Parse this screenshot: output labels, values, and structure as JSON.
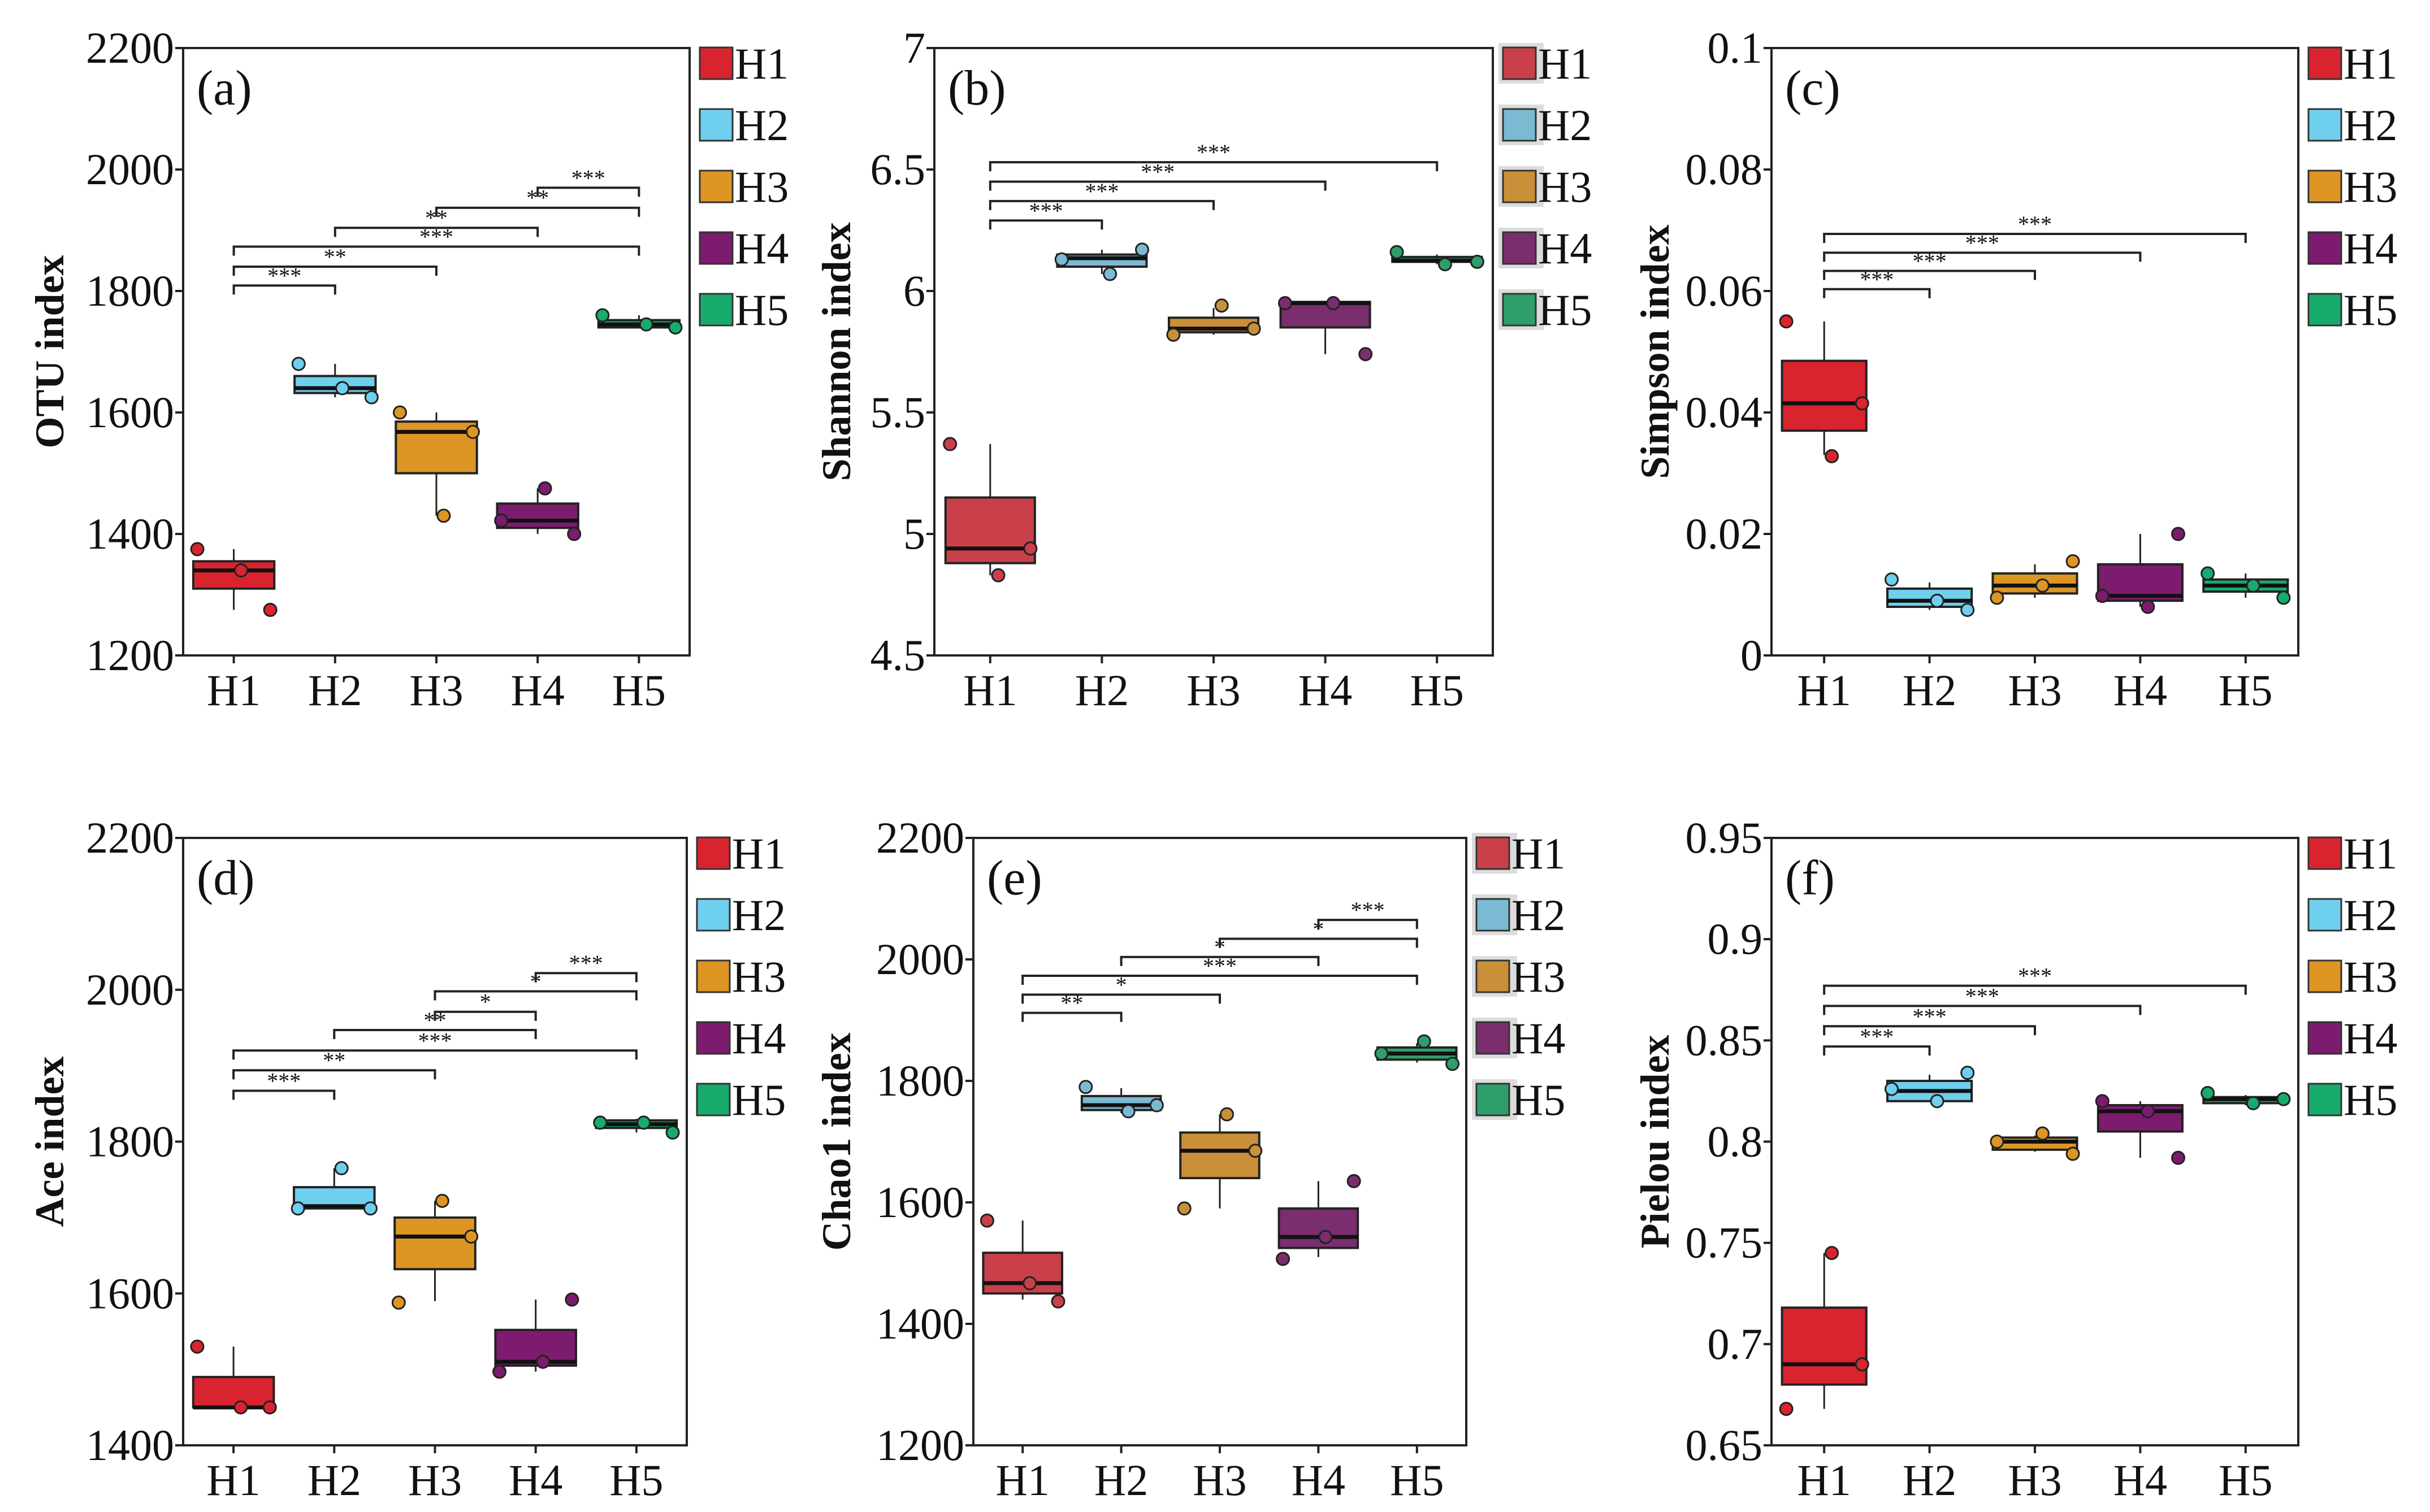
{
  "chart_data": [
    {
      "type": "box",
      "panel_label": "(a)",
      "ylabel": "OTU index",
      "ylim": [
        1200,
        2200
      ],
      "yticks": [
        "1200",
        "1400",
        "1600",
        "1800",
        "2000",
        "2200"
      ],
      "legend_style": "bright",
      "categories": [
        "H1",
        "H2",
        "H3",
        "H4",
        "H5"
      ],
      "groups": [
        {
          "whisker": [
            1275,
            1375
          ],
          "box": [
            1310,
            1355
          ],
          "median": 1340,
          "points": [
            1375,
            1340,
            1275
          ]
        },
        {
          "whisker": [
            1625,
            1680
          ],
          "box": [
            1632,
            1660
          ],
          "median": 1640,
          "points": [
            1680,
            1640,
            1625
          ]
        },
        {
          "whisker": [
            1430,
            1600
          ],
          "box": [
            1500,
            1585
          ],
          "median": 1568,
          "points": [
            1600,
            1430,
            1568
          ]
        },
        {
          "whisker": [
            1400,
            1475
          ],
          "box": [
            1410,
            1450
          ],
          "median": 1422,
          "points": [
            1422,
            1475,
            1400
          ]
        },
        {
          "whisker": [
            1740,
            1760
          ],
          "box": [
            1740,
            1752
          ],
          "median": 1745,
          "points": [
            1760,
            1745,
            1740
          ]
        }
      ],
      "brackets": [
        {
          "from": "H1",
          "to": "H2",
          "label": "***",
          "y": 1809
        },
        {
          "from": "H1",
          "to": "H3",
          "label": "**",
          "y": 1840
        },
        {
          "from": "H1",
          "to": "H5",
          "label": "***",
          "y": 1873
        },
        {
          "from": "H2",
          "to": "H4",
          "label": "**",
          "y": 1904
        },
        {
          "from": "H3",
          "to": "H5",
          "label": "**",
          "y": 1937
        },
        {
          "from": "H4",
          "to": "H5",
          "label": "***",
          "y": 1970
        }
      ]
    },
    {
      "type": "box",
      "panel_label": "(b)",
      "ylabel": "Shannon index",
      "ylim": [
        4.5,
        7
      ],
      "yticks": [
        "4.5",
        "5",
        "5.5",
        "6",
        "6.5",
        "7"
      ],
      "legend_style": "muted",
      "categories": [
        "H1",
        "H2",
        "H3",
        "H4",
        "H5"
      ],
      "groups": [
        {
          "whisker": [
            4.83,
            5.37
          ],
          "box": [
            4.88,
            5.15
          ],
          "median": 4.94,
          "points": [
            5.37,
            4.83,
            4.94
          ]
        },
        {
          "whisker": [
            6.07,
            6.17
          ],
          "box": [
            6.1,
            6.15
          ],
          "median": 6.135,
          "points": [
            6.13,
            6.07,
            6.17
          ]
        },
        {
          "whisker": [
            5.82,
            5.93
          ],
          "box": [
            5.83,
            5.89
          ],
          "median": 5.845,
          "points": [
            5.82,
            5.94,
            5.845
          ]
        },
        {
          "whisker": [
            5.74,
            5.95
          ],
          "box": [
            5.85,
            5.955
          ],
          "median": 5.95,
          "points": [
            5.95,
            5.95,
            5.74
          ]
        },
        {
          "whisker": [
            6.11,
            6.15
          ],
          "box": [
            6.12,
            6.14
          ],
          "median": 6.125,
          "points": [
            6.16,
            6.11,
            6.12
          ]
        }
      ],
      "brackets": [
        {
          "from": "H1",
          "to": "H2",
          "label": "***",
          "y": 6.29
        },
        {
          "from": "H1",
          "to": "H3",
          "label": "***",
          "y": 6.37
        },
        {
          "from": "H1",
          "to": "H4",
          "label": "***",
          "y": 6.45
        },
        {
          "from": "H1",
          "to": "H5",
          "label": "***",
          "y": 6.53
        }
      ]
    },
    {
      "type": "box",
      "panel_label": "(c)",
      "ylabel": "Simpson index",
      "ylim": [
        0,
        0.1
      ],
      "yticks": [
        "0",
        "0.02",
        "0.04",
        "0.06",
        "0.08",
        "0.1"
      ],
      "legend_style": "bright",
      "categories": [
        "H1",
        "H2",
        "H3",
        "H4",
        "H5"
      ],
      "groups": [
        {
          "whisker": [
            0.033,
            0.055
          ],
          "box": [
            0.037,
            0.0485
          ],
          "median": 0.0415,
          "points": [
            0.055,
            0.0328,
            0.0415
          ]
        },
        {
          "whisker": [
            0.0075,
            0.012
          ],
          "box": [
            0.008,
            0.011
          ],
          "median": 0.009,
          "points": [
            0.0125,
            0.009,
            0.0075
          ]
        },
        {
          "whisker": [
            0.0095,
            0.015
          ],
          "box": [
            0.0102,
            0.0135
          ],
          "median": 0.0115,
          "points": [
            0.0095,
            0.0115,
            0.0155
          ]
        },
        {
          "whisker": [
            0.008,
            0.02
          ],
          "box": [
            0.009,
            0.015
          ],
          "median": 0.0098,
          "points": [
            0.0098,
            0.008,
            0.02
          ]
        },
        {
          "whisker": [
            0.0095,
            0.0135
          ],
          "box": [
            0.0105,
            0.0125
          ],
          "median": 0.0115,
          "points": [
            0.0135,
            0.0115,
            0.0095
          ]
        }
      ],
      "brackets": [
        {
          "from": "H1",
          "to": "H2",
          "label": "***",
          "y": 0.0603
        },
        {
          "from": "H1",
          "to": "H3",
          "label": "***",
          "y": 0.0633
        },
        {
          "from": "H1",
          "to": "H4",
          "label": "***",
          "y": 0.0663
        },
        {
          "from": "H1",
          "to": "H5",
          "label": "***",
          "y": 0.0694
        }
      ]
    },
    {
      "type": "box",
      "panel_label": "(d)",
      "ylabel": "Ace index",
      "ylim": [
        1400,
        2200
      ],
      "yticks": [
        "1400",
        "1600",
        "1800",
        "2000",
        "2200"
      ],
      "legend_style": "bright",
      "categories": [
        "H1",
        "H2",
        "H3",
        "H4",
        "H5"
      ],
      "groups": [
        {
          "whisker": [
            1450,
            1530
          ],
          "box": [
            1450,
            1490
          ],
          "median": 1450,
          "points": [
            1530,
            1450,
            1450
          ]
        },
        {
          "whisker": [
            1712,
            1765
          ],
          "box": [
            1712,
            1740
          ],
          "median": 1715,
          "points": [
            1712,
            1765,
            1712
          ]
        },
        {
          "whisker": [
            1590,
            1722
          ],
          "box": [
            1632,
            1700
          ],
          "median": 1675,
          "points": [
            1588,
            1722,
            1675
          ]
        },
        {
          "whisker": [
            1497,
            1592
          ],
          "box": [
            1505,
            1552
          ],
          "median": 1510,
          "points": [
            1497,
            1510,
            1592
          ]
        },
        {
          "whisker": [
            1812,
            1830
          ],
          "box": [
            1818,
            1828
          ],
          "median": 1823,
          "points": [
            1825,
            1825,
            1812
          ]
        }
      ],
      "brackets": [
        {
          "from": "H1",
          "to": "H2",
          "label": "***",
          "y": 1867
        },
        {
          "from": "H1",
          "to": "H3",
          "label": "**",
          "y": 1894
        },
        {
          "from": "H1",
          "to": "H5",
          "label": "***",
          "y": 1920
        },
        {
          "from": "H2",
          "to": "H4",
          "label": "**",
          "y": 1947
        },
        {
          "from": "H3",
          "to": "H4",
          "label": "*",
          "y": 1971
        },
        {
          "from": "H3",
          "to": "H5",
          "label": "*",
          "y": 1998
        },
        {
          "from": "H4",
          "to": "H5",
          "label": "***",
          "y": 2022
        }
      ]
    },
    {
      "type": "box",
      "panel_label": "(e)",
      "ylabel": "Chao1 index",
      "ylim": [
        1200,
        2200
      ],
      "yticks": [
        "1200",
        "1400",
        "1600",
        "1800",
        "2000",
        "2200"
      ],
      "legend_style": "muted",
      "categories": [
        "H1",
        "H2",
        "H3",
        "H4",
        "H5"
      ],
      "groups": [
        {
          "whisker": [
            1440,
            1570
          ],
          "box": [
            1450,
            1517
          ],
          "median": 1467,
          "points": [
            1570,
            1467,
            1437
          ]
        },
        {
          "whisker": [
            1747,
            1788
          ],
          "box": [
            1752,
            1775
          ],
          "median": 1760,
          "points": [
            1790,
            1750,
            1760
          ]
        },
        {
          "whisker": [
            1590,
            1745
          ],
          "box": [
            1640,
            1715
          ],
          "median": 1685,
          "points": [
            1590,
            1745,
            1685
          ]
        },
        {
          "whisker": [
            1510,
            1635
          ],
          "box": [
            1525,
            1590
          ],
          "median": 1543,
          "points": [
            1507,
            1543,
            1635
          ]
        },
        {
          "whisker": [
            1830,
            1862
          ],
          "box": [
            1835,
            1855
          ],
          "median": 1845,
          "points": [
            1845,
            1865,
            1828
          ]
        }
      ],
      "brackets": [
        {
          "from": "H1",
          "to": "H2",
          "label": "**",
          "y": 1912
        },
        {
          "from": "H1",
          "to": "H3",
          "label": "*",
          "y": 1942
        },
        {
          "from": "H1",
          "to": "H5",
          "label": "***",
          "y": 1973
        },
        {
          "from": "H2",
          "to": "H4",
          "label": "*",
          "y": 2004
        },
        {
          "from": "H3",
          "to": "H5",
          "label": "*",
          "y": 2034
        },
        {
          "from": "H4",
          "to": "H5",
          "label": "***",
          "y": 2065
        }
      ]
    },
    {
      "type": "box",
      "panel_label": "(f)",
      "ylabel": "Pielou index",
      "ylim": [
        0.65,
        0.95
      ],
      "yticks": [
        "0.65",
        "0.7",
        "0.75",
        "0.8",
        "0.85",
        "0.9",
        "0.95"
      ],
      "legend_style": "bright",
      "categories": [
        "H1",
        "H2",
        "H3",
        "H4",
        "H5"
      ],
      "groups": [
        {
          "whisker": [
            0.668,
            0.745
          ],
          "box": [
            0.68,
            0.718
          ],
          "median": 0.69,
          "points": [
            0.668,
            0.745,
            0.69
          ]
        },
        {
          "whisker": [
            0.82,
            0.833
          ],
          "box": [
            0.82,
            0.83
          ],
          "median": 0.825,
          "points": [
            0.826,
            0.82,
            0.834
          ]
        },
        {
          "whisker": [
            0.795,
            0.803
          ],
          "box": [
            0.796,
            0.802
          ],
          "median": 0.8,
          "points": [
            0.8,
            0.804,
            0.794
          ]
        },
        {
          "whisker": [
            0.792,
            0.82
          ],
          "box": [
            0.805,
            0.818
          ],
          "median": 0.815,
          "points": [
            0.82,
            0.815,
            0.792
          ]
        },
        {
          "whisker": [
            0.818,
            0.823
          ],
          "box": [
            0.819,
            0.822
          ],
          "median": 0.821,
          "points": [
            0.824,
            0.819,
            0.821
          ]
        }
      ],
      "brackets": [
        {
          "from": "H1",
          "to": "H2",
          "label": "***",
          "y": 0.847
        },
        {
          "from": "H1",
          "to": "H3",
          "label": "***",
          "y": 0.857
        },
        {
          "from": "H1",
          "to": "H4",
          "label": "***",
          "y": 0.867
        },
        {
          "from": "H1",
          "to": "H5",
          "label": "***",
          "y": 0.877
        }
      ]
    }
  ],
  "colors": {
    "bright": [
      "#d9242f",
      "#6fcfee",
      "#dd9523",
      "#7d1b6e",
      "#17ab6c"
    ],
    "muted": [
      "#c9404a",
      "#7bbad3",
      "#c98f39",
      "#7a2e6e",
      "#2e9e6a"
    ]
  }
}
